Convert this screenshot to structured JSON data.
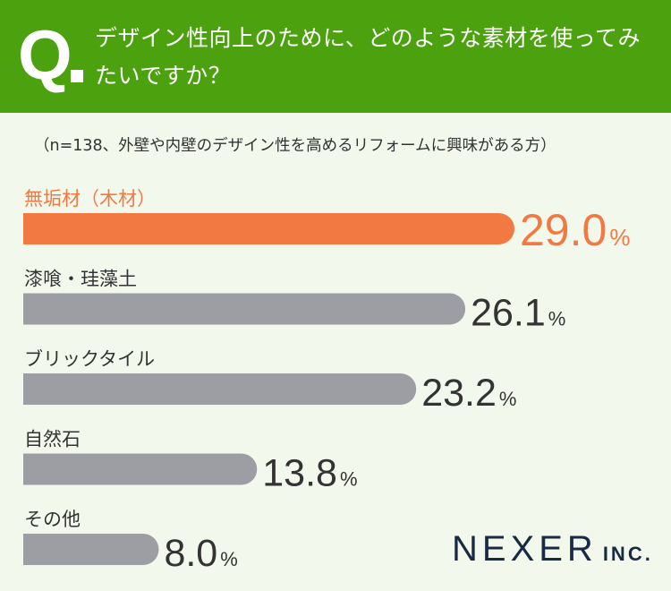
{
  "question": {
    "mark": "Q",
    "text": "デザイン性向上のために、どのような素材を使ってみたいですか？"
  },
  "note": "（n=138、外壁や内壁のデザイン性を高めるリフォームに興味がある方）",
  "brand": {
    "name": "NEXER",
    "suffix": "INC."
  },
  "colors": {
    "header": "#4ba10e",
    "highlight": "#f27a42",
    "bar": "#9d9ea4",
    "text": "#333333",
    "background": "#f3f8ec",
    "brand": "#182a44"
  },
  "chart_data": {
    "type": "bar",
    "orientation": "horizontal",
    "categories": [
      "無垢材（木材）",
      "漆喰・珪藻土",
      "ブリックタイル",
      "自然石",
      "その他"
    ],
    "values": [
      29.0,
      26.1,
      23.2,
      13.8,
      8.0
    ],
    "value_labels": [
      "29.0",
      "26.1",
      "23.2",
      "13.8",
      "8.0"
    ],
    "unit": "%",
    "highlight_index": 0,
    "xlim": [
      0,
      29.0
    ]
  }
}
